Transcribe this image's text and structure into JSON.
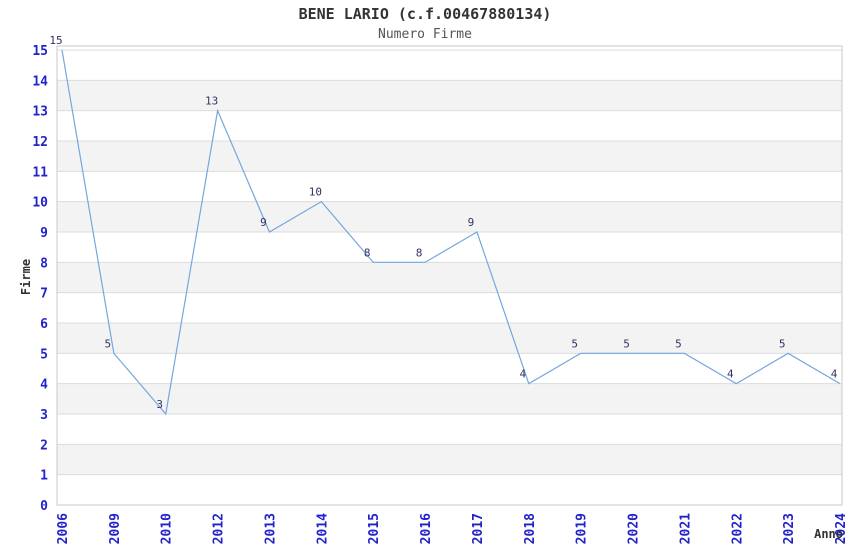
{
  "chart_data": {
    "type": "line",
    "title": "BENE LARIO (c.f.00467880134)",
    "subtitle": "Numero Firme",
    "xlabel": "Anno",
    "ylabel": "Firme",
    "categories": [
      "2006",
      "2009",
      "2010",
      "2012",
      "2013",
      "2014",
      "2015",
      "2016",
      "2017",
      "2018",
      "2019",
      "2020",
      "2021",
      "2022",
      "2023",
      "2024"
    ],
    "values": [
      15,
      5,
      3,
      13,
      9,
      10,
      8,
      8,
      9,
      4,
      5,
      5,
      5,
      4,
      5,
      4
    ],
    "ylim": [
      0,
      15
    ],
    "ytick_step": 1,
    "grid": "horizontal",
    "background_bands": "alternating gray/white between integer gridlines",
    "legend": "none",
    "point_labels_shown": true,
    "x_tick_rotation_deg": 90,
    "colors": {
      "line": "#74a7dd",
      "tick_labels": "#2222cc",
      "point_labels": "#333366",
      "band": "#f3f3f3",
      "gridline": "#dcdcdc",
      "spine": "#c9c9c9",
      "title_text": "#333333",
      "subtitle_text": "#555555",
      "background": "#ffffff"
    }
  }
}
